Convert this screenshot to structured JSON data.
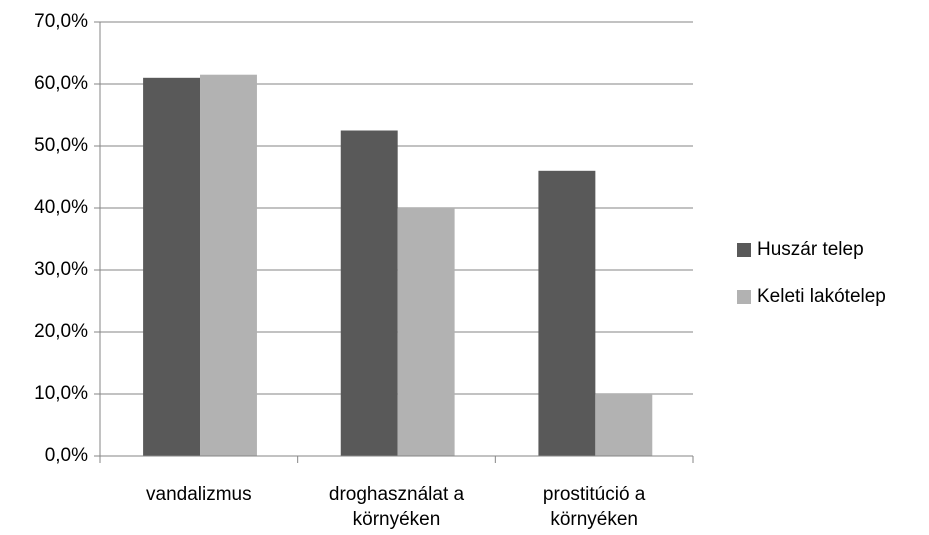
{
  "chart_data": {
    "type": "bar",
    "categories": [
      "vandalizmus",
      "droghasználat a környéken",
      "prostitúció a környéken"
    ],
    "series": [
      {
        "name": "Huszár telep",
        "color": "#595959",
        "values": [
          61.0,
          52.5,
          46.0
        ]
      },
      {
        "name": "Keleti lakótelep",
        "color": "#b2b2b2",
        "values": [
          61.5,
          40.0,
          10.0
        ]
      }
    ],
    "ylim": [
      0,
      70
    ],
    "yticks": [
      {
        "value": 0,
        "label": "0,0%"
      },
      {
        "value": 10,
        "label": "10,0%"
      },
      {
        "value": 20,
        "label": "20,0%"
      },
      {
        "value": 30,
        "label": "30,0%"
      },
      {
        "value": 40,
        "label": "40,0%"
      },
      {
        "value": 50,
        "label": "50,0%"
      },
      {
        "value": 60,
        "label": "60,0%"
      },
      {
        "value": 70,
        "label": "70,0%"
      }
    ],
    "grid": true,
    "legend": "right"
  }
}
